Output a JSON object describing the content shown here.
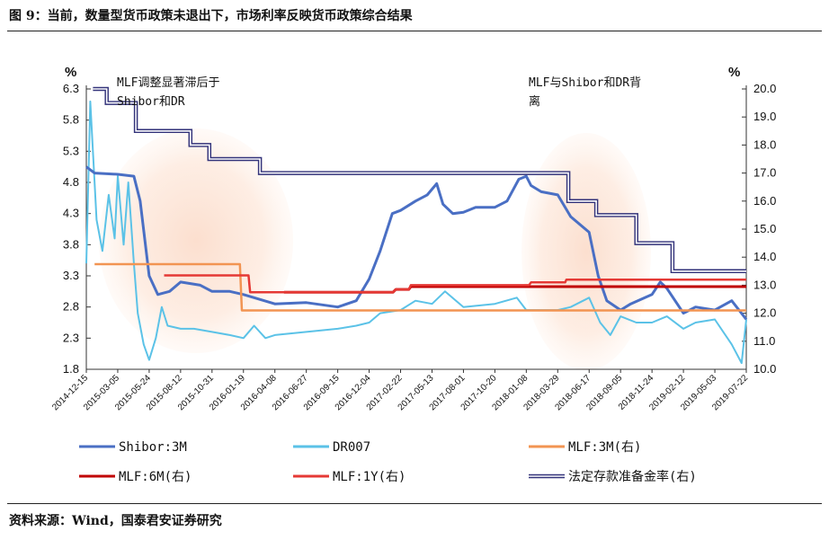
{
  "title": "图 9：当前，数量型货币政策未退出下，市场利率反映货币政策综合结果",
  "source": "资料来源：Wind，国泰君安证券研究",
  "chart_data": {
    "type": "line",
    "left_unit": "%",
    "right_unit": "%",
    "left_ylim": [
      1.8,
      6.3
    ],
    "right_ylim": [
      10.0,
      20.0
    ],
    "left_ticks": [
      "6.3",
      "5.8",
      "5.3",
      "4.8",
      "4.3",
      "3.8",
      "3.3",
      "2.8",
      "2.3",
      "1.8"
    ],
    "right_ticks": [
      "20.0",
      "19.0",
      "18.0",
      "17.0",
      "16.0",
      "15.0",
      "14.0",
      "13.0",
      "12.0",
      "11.0",
      "10.0"
    ],
    "x_ticks": [
      "2014-12-15",
      "2015-03-05",
      "2015-05-24",
      "2015-08-12",
      "2015-10-31",
      "2016-01-19",
      "2016-04-08",
      "2016-06-27",
      "2016-09-15",
      "2016-12-04",
      "2017-02-22",
      "2017-05-13",
      "2017-08-01",
      "2017-10-20",
      "2018-01-08",
      "2018-03-29",
      "2018-06-17",
      "2018-09-05",
      "2018-11-24",
      "2019-02-12",
      "2019-05-03",
      "2019-07-22"
    ],
    "annotations": [
      {
        "line1": "MLF调整显著滞后于",
        "line2": "Shibor和DR"
      },
      {
        "line1": "MLF与Shibor和DR背",
        "line2": "离"
      }
    ],
    "series": [
      {
        "name": "Shibor:3M",
        "axis": "left",
        "color": "#4a6fc4",
        "points": [
          [
            "2014-12-15",
            5.05
          ],
          [
            "2015-01-05",
            4.95
          ],
          [
            "2015-03-05",
            4.93
          ],
          [
            "2015-04-15",
            4.9
          ],
          [
            "2015-05-01",
            4.5
          ],
          [
            "2015-05-24",
            3.3
          ],
          [
            "2015-06-15",
            3.0
          ],
          [
            "2015-07-15",
            3.05
          ],
          [
            "2015-08-12",
            3.2
          ],
          [
            "2015-10-01",
            3.15
          ],
          [
            "2015-10-31",
            3.05
          ],
          [
            "2015-12-15",
            3.05
          ],
          [
            "2016-01-19",
            3.0
          ],
          [
            "2016-02-15",
            2.95
          ],
          [
            "2016-04-08",
            2.85
          ],
          [
            "2016-06-27",
            2.87
          ],
          [
            "2016-09-15",
            2.8
          ],
          [
            "2016-11-01",
            2.9
          ],
          [
            "2016-12-04",
            3.25
          ],
          [
            "2017-01-01",
            3.7
          ],
          [
            "2017-02-01",
            4.3
          ],
          [
            "2017-02-22",
            4.35
          ],
          [
            "2017-04-01",
            4.5
          ],
          [
            "2017-05-01",
            4.6
          ],
          [
            "2017-05-25",
            4.78
          ],
          [
            "2017-06-10",
            4.45
          ],
          [
            "2017-07-05",
            4.3
          ],
          [
            "2017-08-01",
            4.32
          ],
          [
            "2017-09-01",
            4.4
          ],
          [
            "2017-10-20",
            4.4
          ],
          [
            "2017-11-20",
            4.5
          ],
          [
            "2017-12-20",
            4.85
          ],
          [
            "2018-01-08",
            4.9
          ],
          [
            "2018-01-20",
            4.75
          ],
          [
            "2018-02-15",
            4.65
          ],
          [
            "2018-03-29",
            4.6
          ],
          [
            "2018-05-01",
            4.25
          ],
          [
            "2018-06-17",
            4.0
          ],
          [
            "2018-07-10",
            3.3
          ],
          [
            "2018-08-01",
            2.9
          ],
          [
            "2018-09-05",
            2.75
          ],
          [
            "2018-10-01",
            2.85
          ],
          [
            "2018-11-24",
            3.0
          ],
          [
            "2018-12-15",
            3.2
          ],
          [
            "2019-01-01",
            3.1
          ],
          [
            "2019-02-12",
            2.7
          ],
          [
            "2019-03-15",
            2.8
          ],
          [
            "2019-05-03",
            2.75
          ],
          [
            "2019-06-15",
            2.9
          ],
          [
            "2019-07-22",
            2.6
          ]
        ]
      },
      {
        "name": "DR007",
        "axis": "left",
        "color": "#5bc2e7",
        "points": [
          [
            "2014-12-15",
            3.5
          ],
          [
            "2014-12-25",
            6.1
          ],
          [
            "2015-01-10",
            4.2
          ],
          [
            "2015-01-25",
            3.7
          ],
          [
            "2015-02-10",
            4.6
          ],
          [
            "2015-02-25",
            3.9
          ],
          [
            "2015-03-05",
            4.9
          ],
          [
            "2015-03-20",
            3.8
          ],
          [
            "2015-04-01",
            4.8
          ],
          [
            "2015-04-15",
            3.5
          ],
          [
            "2015-04-25",
            2.7
          ],
          [
            "2015-05-10",
            2.2
          ],
          [
            "2015-05-24",
            1.95
          ],
          [
            "2015-06-10",
            2.3
          ],
          [
            "2015-06-25",
            2.8
          ],
          [
            "2015-07-10",
            2.5
          ],
          [
            "2015-08-12",
            2.45
          ],
          [
            "2015-09-15",
            2.45
          ],
          [
            "2015-10-31",
            2.4
          ],
          [
            "2015-12-15",
            2.35
          ],
          [
            "2016-01-19",
            2.3
          ],
          [
            "2016-02-15",
            2.5
          ],
          [
            "2016-03-15",
            2.3
          ],
          [
            "2016-04-08",
            2.35
          ],
          [
            "2016-06-27",
            2.4
          ],
          [
            "2016-09-15",
            2.45
          ],
          [
            "2016-11-01",
            2.5
          ],
          [
            "2016-12-04",
            2.55
          ],
          [
            "2017-01-01",
            2.7
          ],
          [
            "2017-02-22",
            2.75
          ],
          [
            "2017-04-01",
            2.9
          ],
          [
            "2017-05-13",
            2.85
          ],
          [
            "2017-06-15",
            3.05
          ],
          [
            "2017-08-01",
            2.8
          ],
          [
            "2017-10-20",
            2.85
          ],
          [
            "2017-12-15",
            2.95
          ],
          [
            "2018-01-08",
            2.75
          ],
          [
            "2018-03-29",
            2.75
          ],
          [
            "2018-05-01",
            2.8
          ],
          [
            "2018-06-17",
            2.95
          ],
          [
            "2018-07-15",
            2.55
          ],
          [
            "2018-08-10",
            2.35
          ],
          [
            "2018-09-05",
            2.65
          ],
          [
            "2018-10-15",
            2.55
          ],
          [
            "2018-11-24",
            2.55
          ],
          [
            "2019-01-01",
            2.65
          ],
          [
            "2019-02-12",
            2.45
          ],
          [
            "2019-03-15",
            2.55
          ],
          [
            "2019-05-03",
            2.6
          ],
          [
            "2019-06-15",
            2.2
          ],
          [
            "2019-07-10",
            1.9
          ],
          [
            "2019-07-22",
            2.6
          ]
        ]
      },
      {
        "name": "MLF:3M(右)",
        "axis": "right",
        "color": "#f29452",
        "points": [
          [
            "2015-01-05",
            13.75
          ],
          [
            "2016-01-10",
            13.75
          ],
          [
            "2016-01-15",
            12.1
          ],
          [
            "2019-07-22",
            12.1
          ]
        ]
      },
      {
        "name": "MLF:6M(右)",
        "axis": "right",
        "color": "#c00000",
        "points": [
          [
            "2016-05-01",
            12.75
          ],
          [
            "2017-02-03",
            12.75
          ],
          [
            "2017-02-10",
            12.85
          ],
          [
            "2017-03-15",
            12.85
          ],
          [
            "2017-03-20",
            12.95
          ],
          [
            "2019-07-22",
            12.95
          ]
        ]
      },
      {
        "name": "MLF:1Y(右)",
        "axis": "right",
        "color": "#e53935",
        "points": [
          [
            "2015-07-01",
            13.35
          ],
          [
            "2016-02-01",
            13.35
          ],
          [
            "2016-02-05",
            12.75
          ],
          [
            "2017-02-03",
            12.75
          ],
          [
            "2017-02-10",
            12.85
          ],
          [
            "2017-03-15",
            12.85
          ],
          [
            "2017-03-20",
            13.0
          ],
          [
            "2018-01-15",
            13.0
          ],
          [
            "2018-01-20",
            13.1
          ],
          [
            "2018-04-17",
            13.1
          ],
          [
            "2018-04-20",
            13.2
          ],
          [
            "2019-07-22",
            13.2
          ]
        ]
      },
      {
        "name": "法定存款准备金率(右)",
        "axis": "right",
        "color": "#33337a",
        "points": [
          [
            "2015-01-01",
            20.0
          ],
          [
            "2015-02-05",
            20.0
          ],
          [
            "2015-02-05",
            19.5
          ],
          [
            "2015-04-20",
            19.5
          ],
          [
            "2015-04-20",
            18.5
          ],
          [
            "2015-09-06",
            18.5
          ],
          [
            "2015-09-06",
            18.0
          ],
          [
            "2015-10-24",
            18.0
          ],
          [
            "2015-10-24",
            17.5
          ],
          [
            "2016-03-01",
            17.5
          ],
          [
            "2016-03-01",
            17.0
          ],
          [
            "2018-04-25",
            17.0
          ],
          [
            "2018-04-25",
            16.0
          ],
          [
            "2018-07-05",
            16.0
          ],
          [
            "2018-07-05",
            15.5
          ],
          [
            "2018-10-15",
            15.5
          ],
          [
            "2018-10-15",
            14.5
          ],
          [
            "2019-01-15",
            14.5
          ],
          [
            "2019-01-15",
            13.5
          ],
          [
            "2019-07-22",
            13.5
          ]
        ]
      }
    ]
  }
}
